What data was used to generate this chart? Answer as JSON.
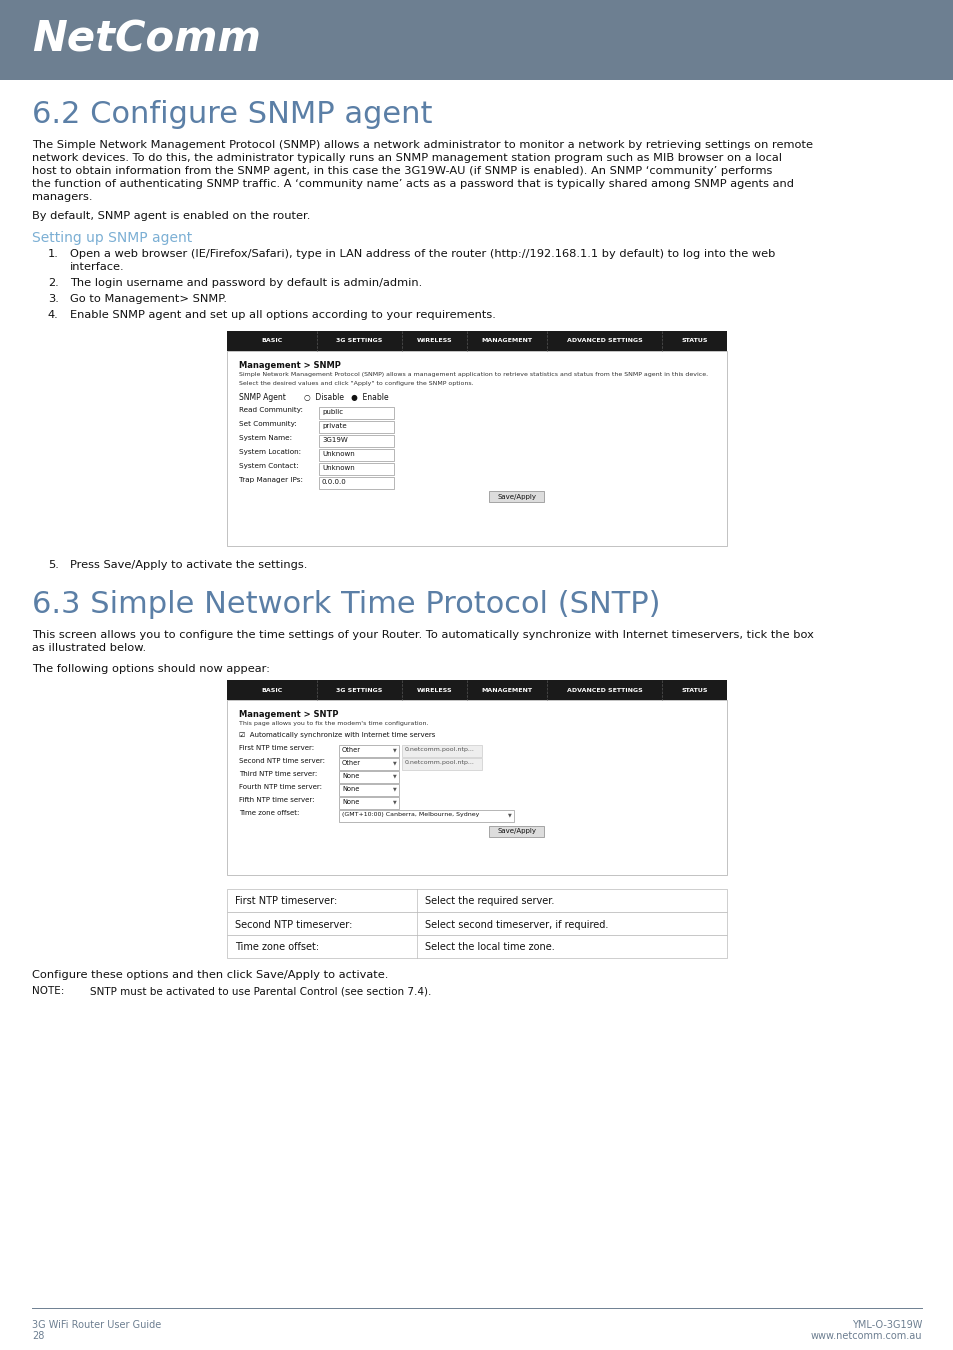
{
  "header_bg_color": "#6d7f91",
  "page_bg_color": "#ffffff",
  "title1": "6.2 Configure SNMP agent",
  "title1_color": "#5b7fa6",
  "body1_lines": [
    "The Simple Network Management Protocol (SNMP) allows a network administrator to monitor a network by retrieving settings on remote",
    "network devices. To do this, the administrator typically runs an SNMP management station program such as MIB browser on a local",
    "host to obtain information from the SNMP agent, in this case the 3G19W-AU (if SNMP is enabled). An SNMP ‘community’ performs",
    "the function of authenticating SNMP traffic. A ‘community name’ acts as a password that is typically shared among SNMP agents and",
    "managers."
  ],
  "body2": "By default, SNMP agent is enabled on the router.",
  "subtitle1": "Setting up SNMP agent",
  "subtitle1_color": "#7bafd4",
  "snmp_steps": [
    [
      "Open a web browser (IE/Firefox/Safari), type in LAN address of the router (http://192.168.1.1 by default) to log into the web",
      "interface."
    ],
    [
      "The login username and password by default is admin/admin."
    ],
    [
      "Go to Management> SNMP."
    ],
    [
      "Enable SNMP agent and set up all options according to your requirements."
    ]
  ],
  "snmp_step5": "Press Save/Apply to activate the settings.",
  "title2": "6.3 Simple Network Time Protocol (SNTP)",
  "title2_color": "#5b7fa6",
  "body3_lines": [
    "This screen allows you to configure the time settings of your Router. To automatically synchronize with Internet timeservers, tick the box",
    "as illustrated below."
  ],
  "body4": "The following options should now appear:",
  "sntp_text1": "Configure these options and then click Save/Apply to activate.",
  "sntp_note_label": "NOTE:",
  "sntp_note_text": "SNTP must be activated to use Parental Control (see section 7.4).",
  "footer_left1": "3G WiFi Router User Guide",
  "footer_left2": "28",
  "footer_right1": "YML-O-3G19W",
  "footer_right2": "www.netcomm.com.au",
  "footer_color": "#6d7f91",
  "table_rows": [
    [
      "First NTP timeserver:",
      "Select the required server."
    ],
    [
      "Second NTP timeserver:",
      "Select second timeserver, if required."
    ],
    [
      "Time zone offset:",
      "Select the local time zone."
    ]
  ],
  "nav_tabs": [
    "BASIC",
    "3G SETTINGS",
    "WIRELESS",
    "MANAGEMENT",
    "ADVANCED SETTINGS",
    "STATUS"
  ],
  "nav_bg": "#1a1a1a",
  "snmp_fields": [
    [
      "Read Community:",
      "public"
    ],
    [
      "Set Community:",
      "private"
    ],
    [
      "System Name:",
      "3G19W"
    ],
    [
      "System Location:",
      "Unknown"
    ],
    [
      "System Contact:",
      "Unknown"
    ],
    [
      "Trap Manager IPs:",
      "0.0.0.0"
    ]
  ],
  "ntp_fields": [
    [
      "First NTP time server:",
      "Other",
      "0.netcomm.pool.ntp..."
    ],
    [
      "Second NTP time server:",
      "Other",
      "0.netcomm.pool.ntp..."
    ],
    [
      "Third NTP time server:",
      "None",
      ""
    ],
    [
      "Fourth NTP time server:",
      "None",
      ""
    ],
    [
      "Fifth NTP time server:",
      "None",
      ""
    ]
  ],
  "tz_value": "(GMT+10:00) Canberra, Melbourne, Sydney"
}
